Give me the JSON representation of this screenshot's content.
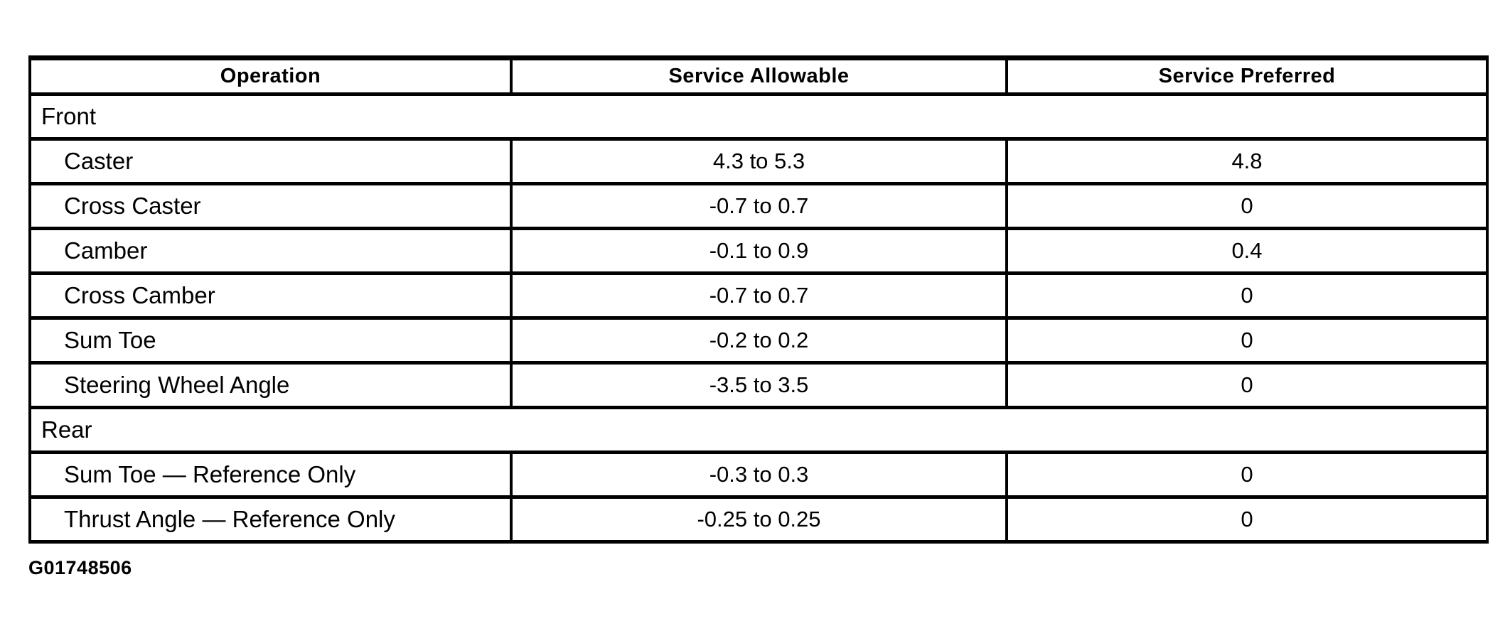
{
  "table": {
    "columns": [
      "Operation",
      "Service Allowable",
      "Service Preferred"
    ],
    "sections": [
      {
        "label": "Front",
        "rows": [
          {
            "operation": "Caster",
            "allowable": "4.3 to 5.3",
            "preferred": "4.8"
          },
          {
            "operation": "Cross Caster",
            "allowable": "-0.7 to 0.7",
            "preferred": "0"
          },
          {
            "operation": "Camber",
            "allowable": "-0.1 to 0.9",
            "preferred": "0.4"
          },
          {
            "operation": "Cross Camber",
            "allowable": "-0.7 to 0.7",
            "preferred": "0"
          },
          {
            "operation": "Sum Toe",
            "allowable": "-0.2 to 0.2",
            "preferred": "0"
          },
          {
            "operation": "Steering Wheel Angle",
            "allowable": "-3.5 to 3.5",
            "preferred": "0"
          }
        ]
      },
      {
        "label": "Rear",
        "rows": [
          {
            "operation": "Sum Toe — Reference Only",
            "allowable": "-0.3 to 0.3",
            "preferred": "0"
          },
          {
            "operation": "Thrust Angle — Reference Only",
            "allowable": "-0.25 to 0.25",
            "preferred": "0"
          }
        ]
      }
    ],
    "figure_id": "G01748506"
  },
  "colors": {
    "background": "#ffffff",
    "border": "#000000",
    "text": "#000000"
  }
}
